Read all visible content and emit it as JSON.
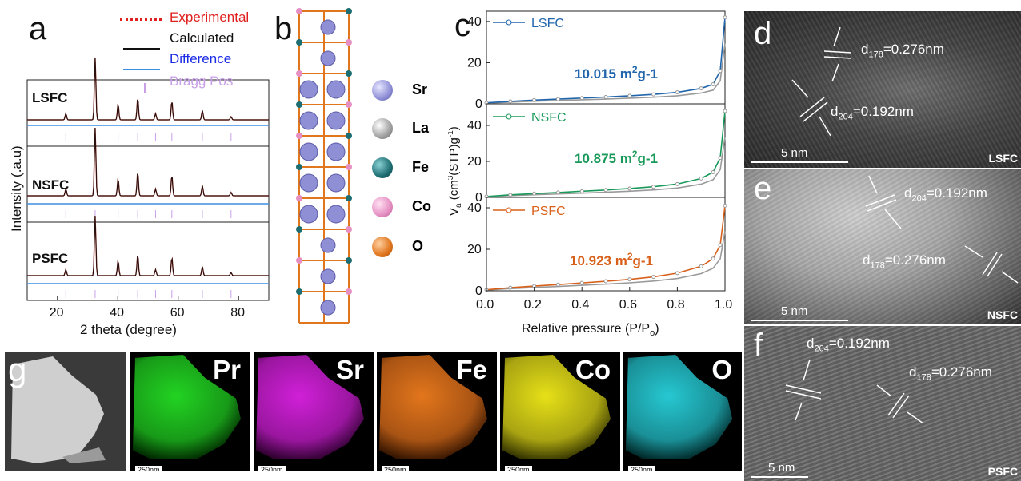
{
  "panels": {
    "a": {
      "label": "a",
      "ylabel": "Intensity (.a.u)",
      "xlabel": "2 theta (degree)",
      "xticks": [
        "20",
        "40",
        "60",
        "80"
      ],
      "legend": [
        {
          "text": "Experimental",
          "color": "#e0201e"
        },
        {
          "text": "Calculated",
          "color": "#111111"
        },
        {
          "text": "Difference",
          "color": "#1b2be6"
        },
        {
          "text": "Bragg Pos",
          "color": "#c9a0e8"
        }
      ],
      "samples": [
        "LSFC",
        "NSFC",
        "PSFC"
      ]
    },
    "b": {
      "label": "b",
      "atoms": [
        {
          "name": "Sr",
          "color": "#8f8fd6"
        },
        {
          "name": "La",
          "color": "#9a9a9a"
        },
        {
          "name": "Fe",
          "color": "#1d6e72"
        },
        {
          "name": "Co",
          "color": "#e58fc2"
        },
        {
          "name": "O",
          "color": "#e0761e"
        }
      ]
    },
    "c": {
      "label": "c",
      "ylabel_main": "V",
      "ylabel_sub": "a",
      "ylabel_rest1": " (cm",
      "ylabel_sup": "3",
      "ylabel_rest2": "(STP)g",
      "ylabel_sup2": "-1",
      "ylabel_rest3": ")",
      "xlabel_main": "Relative pressure (P/P",
      "xlabel_sub": "o",
      "xlabel_end": ")",
      "xticks": [
        "0.0",
        "0.2",
        "0.4",
        "0.6",
        "0.8",
        "1.0"
      ],
      "subplots": [
        {
          "name": "LSFC",
          "area": "10.015 m",
          "area_sup": "2",
          "area_tail": "g-1",
          "color": "#2166ac",
          "yticks": [
            "0",
            "20",
            "40"
          ]
        },
        {
          "name": "NSFC",
          "area": "10.875 m",
          "area_sup": "2",
          "area_tail": "g-1",
          "color": "#1a9a5a",
          "yticks": [
            "0",
            "20",
            "40"
          ]
        },
        {
          "name": "PSFC",
          "area": "10.923 m",
          "area_sup": "2",
          "area_tail": "g-1",
          "color": "#d8601a",
          "yticks": [
            "0",
            "20",
            "40"
          ]
        }
      ]
    },
    "d": {
      "label": "d",
      "spacing1": "d",
      "sub1": "178",
      "val1": "=0.276nm",
      "spacing2": "d",
      "sub2": "204",
      "val2": "=0.192nm",
      "scale": "5 nm",
      "sample": "LSFC"
    },
    "e": {
      "label": "e",
      "spacing1": "d",
      "sub1": "204",
      "val1": "=0.192nm",
      "spacing2": "d",
      "sub2": "178",
      "val2": "=0.276nm",
      "scale": "5 nm",
      "sample": "NSFC"
    },
    "f": {
      "label": "f",
      "spacing1": "d",
      "sub1": "204",
      "val1": "=0.192nm",
      "spacing2": "d",
      "sub2": "178",
      "val2": "=0.276nm",
      "scale": "5 nm",
      "sample": "PSFC"
    },
    "g": {
      "label": "g",
      "maps": [
        {
          "element": "Pr",
          "color": "#22d322",
          "scale": "250nm"
        },
        {
          "element": "Sr",
          "color": "#d020d8",
          "scale": "250nm"
        },
        {
          "element": "Fe",
          "color": "#e2761c",
          "scale": "250nm"
        },
        {
          "element": "Co",
          "color": "#e6e018",
          "scale": "250nm"
        },
        {
          "element": "O",
          "color": "#26c8d2",
          "scale": "250nm"
        }
      ]
    }
  },
  "chart_data": [
    {
      "type": "line",
      "title": "",
      "xlabel": "2 theta (degree)",
      "ylabel": "Intensity (.a.u)",
      "xlim": [
        10,
        90
      ],
      "series": [
        {
          "name": "LSFC",
          "x": [
            22.8,
            32.5,
            40.1,
            46.6,
            52.5,
            57.9,
            68.0,
            77.5
          ],
          "values": [
            0.1,
            1.0,
            0.25,
            0.35,
            0.1,
            0.3,
            0.15,
            0.05
          ]
        },
        {
          "name": "NSFC",
          "x": [
            22.8,
            32.5,
            40.1,
            46.6,
            52.5,
            57.9,
            68.0,
            77.5
          ],
          "values": [
            0.1,
            1.0,
            0.25,
            0.35,
            0.1,
            0.3,
            0.15,
            0.05
          ]
        },
        {
          "name": "PSFC",
          "x": [
            22.8,
            32.5,
            40.1,
            46.6,
            52.5,
            57.9,
            68.0,
            77.5
          ],
          "values": [
            0.1,
            1.0,
            0.25,
            0.35,
            0.1,
            0.3,
            0.15,
            0.05
          ]
        }
      ]
    },
    {
      "type": "line",
      "title": "",
      "xlabel": "Relative pressure (P/Po)",
      "ylabel": "Va (cm3(STP)g-1)",
      "xlim": [
        0.0,
        1.0
      ],
      "ylim": [
        0,
        45
      ],
      "series": [
        {
          "name": "LSFC",
          "x": [
            0.0,
            0.1,
            0.2,
            0.3,
            0.4,
            0.5,
            0.6,
            0.7,
            0.8,
            0.9,
            0.95,
            0.98,
            1.0
          ],
          "values": [
            0.5,
            1.2,
            1.8,
            2.3,
            2.8,
            3.3,
            3.9,
            4.6,
            5.6,
            7.5,
            9.5,
            16,
            42
          ]
        },
        {
          "name": "NSFC",
          "x": [
            0.0,
            0.1,
            0.2,
            0.3,
            0.4,
            0.5,
            0.6,
            0.7,
            0.8,
            0.9,
            0.95,
            0.98,
            1.0
          ],
          "values": [
            0.5,
            1.4,
            2.1,
            2.7,
            3.4,
            4.1,
            4.9,
            5.9,
            7.4,
            10.5,
            14,
            22,
            48
          ]
        },
        {
          "name": "PSFC",
          "x": [
            0.0,
            0.1,
            0.2,
            0.3,
            0.4,
            0.5,
            0.6,
            0.7,
            0.8,
            0.9,
            0.95,
            0.98,
            1.0
          ],
          "values": [
            0.5,
            1.5,
            2.3,
            3.0,
            3.8,
            4.6,
            5.5,
            6.7,
            8.5,
            11.8,
            15.5,
            22,
            41
          ]
        }
      ]
    }
  ]
}
